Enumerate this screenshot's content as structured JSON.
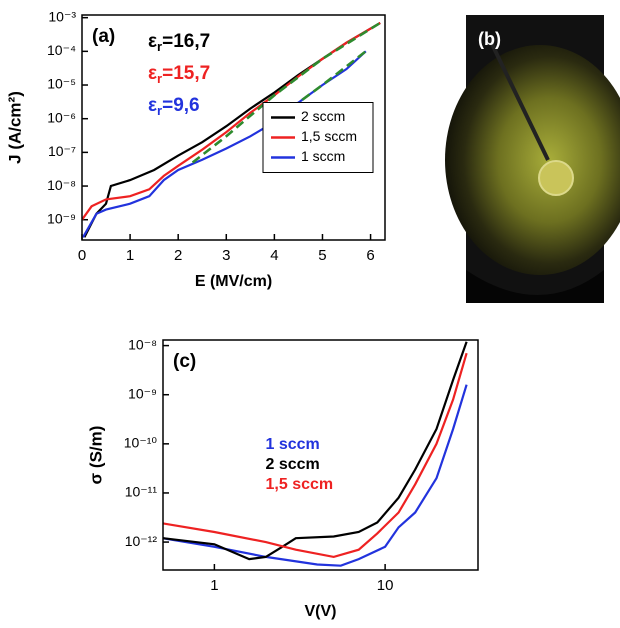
{
  "chart_data": [
    {
      "type": "line",
      "panel_label": "(a)",
      "xlabel": "E (MV/cm)",
      "ylabel": "J (A/cm²)",
      "xlim": [
        0,
        6.3
      ],
      "xticks": [
        0,
        1,
        2,
        3,
        4,
        5,
        6
      ],
      "ylog": true,
      "ylim": [
        2.5e-10,
        0.0012
      ],
      "yticks": [
        {
          "value": 1e-09,
          "label": "10⁻⁹"
        },
        {
          "value": 1e-08,
          "label": "10⁻⁸"
        },
        {
          "value": 1e-07,
          "label": "10⁻⁷"
        },
        {
          "value": 1e-06,
          "label": "10⁻⁶"
        },
        {
          "value": 1e-05,
          "label": "10⁻⁵"
        },
        {
          "value": 0.0001,
          "label": "10⁻⁴"
        },
        {
          "value": 0.001,
          "label": "10⁻³"
        }
      ],
      "legend_loc": "center right",
      "legend_frame": true,
      "annotations": [
        {
          "symbol": "ε",
          "sub": "r",
          "text": "=16,7",
          "color": "#000000"
        },
        {
          "symbol": "ε",
          "sub": "r",
          "text": "=15,7",
          "color": "#ee2222"
        },
        {
          "symbol": "ε",
          "sub": "r",
          "text": "=9,6",
          "color": "#2233dd"
        }
      ],
      "series": [
        {
          "name": "2 sccm",
          "color": "#000000",
          "x": [
            0.05,
            0.3,
            0.5,
            0.6,
            1,
            1.5,
            2,
            2.5,
            3,
            3.5,
            4,
            4.5,
            5,
            5.5,
            6.2
          ],
          "values": [
            3e-10,
            1.5e-09,
            3e-09,
            1e-08,
            1.5e-08,
            3e-08,
            8e-08,
            2e-07,
            6e-07,
            2e-06,
            6e-06,
            2e-05,
            6e-05,
            0.00018,
            0.0007
          ]
        },
        {
          "name": "1,5 sccm",
          "color": "#ee2222",
          "x": [
            0,
            0.2,
            0.5,
            1,
            1.4,
            1.7,
            2,
            2.5,
            3,
            3.5,
            4,
            4.5,
            5,
            5.5,
            6.2
          ],
          "values": [
            1e-09,
            2.5e-09,
            4e-09,
            5e-09,
            8e-09,
            2e-08,
            4e-08,
            1.2e-07,
            4e-07,
            1.5e-06,
            5e-06,
            1.8e-05,
            6e-05,
            0.00018,
            0.0007
          ]
        },
        {
          "name": "1 sccm",
          "color": "#2233dd",
          "x": [
            0.02,
            0.3,
            0.5,
            1,
            1.4,
            1.7,
            2,
            2.5,
            3,
            3.5,
            4,
            4.5,
            5,
            5.5,
            5.9
          ],
          "values": [
            3e-10,
            1.5e-09,
            2e-09,
            3e-09,
            5e-09,
            1.5e-08,
            3e-08,
            6e-08,
            1.3e-07,
            3e-07,
            8e-07,
            3e-06,
            1e-05,
            3e-05,
            0.0001
          ]
        },
        {
          "color": "#2e8b2e",
          "dashed": true,
          "x": [
            2.3,
            3,
            4,
            5,
            6.2
          ],
          "values": [
            5e-08,
            3e-07,
            5e-06,
            6e-05,
            0.0007
          ]
        },
        {
          "color": "#2e8b2e",
          "dashed": true,
          "x": [
            3.9,
            4.5,
            5,
            5.9
          ],
          "values": [
            6e-07,
            3e-06,
            1e-05,
            0.0001
          ]
        }
      ]
    },
    {
      "type": "line",
      "panel_label": "(c)",
      "xlabel": "V(V)",
      "ylabel": "σ (S/m)",
      "xlog": true,
      "xlim": [
        0.5,
        35
      ],
      "xticks": [
        1,
        10
      ],
      "ylog": true,
      "ylim": [
        2.7e-13,
        1.3e-08
      ],
      "yticks": [
        {
          "value": 1e-12,
          "label": "10⁻¹²"
        },
        {
          "value": 1e-11,
          "label": "10⁻¹¹"
        },
        {
          "value": 1e-10,
          "label": "10⁻¹⁰"
        },
        {
          "value": 1e-09,
          "label": "10⁻⁹"
        },
        {
          "value": 1e-08,
          "label": "10⁻⁸"
        }
      ],
      "legend_loc": "center",
      "legend_frame": false,
      "series": [
        {
          "name": "1 sccm",
          "color": "#2233dd",
          "x": [
            0.5,
            1,
            2,
            4,
            5.5,
            7,
            10,
            12,
            15,
            20,
            25,
            30
          ],
          "values": [
            1.2e-12,
            8e-13,
            5e-13,
            3.5e-13,
            3.3e-13,
            4.5e-13,
            8e-13,
            2e-12,
            4e-12,
            2e-11,
            2e-10,
            1.6e-09
          ]
        },
        {
          "name": "2 sccm",
          "color": "#000000",
          "x": [
            0.5,
            1,
            1.6,
            2,
            2.5,
            3,
            5,
            7,
            9,
            12,
            15,
            20,
            25,
            30
          ],
          "values": [
            1.2e-12,
            9e-13,
            4.5e-13,
            5e-13,
            8e-13,
            1.2e-12,
            1.3e-12,
            1.6e-12,
            2.5e-12,
            8e-12,
            3e-11,
            2e-10,
            2e-09,
            1.2e-08
          ]
        },
        {
          "name": "1,5 sccm",
          "color": "#ee2222",
          "x": [
            0.5,
            1,
            2,
            3,
            5,
            7,
            9,
            12,
            15,
            20,
            25,
            30
          ],
          "values": [
            2.4e-12,
            1.6e-12,
            1e-12,
            7e-13,
            5e-13,
            7e-13,
            1.5e-12,
            4e-12,
            1.5e-11,
            1e-10,
            8e-10,
            7e-09
          ]
        }
      ]
    }
  ],
  "photo": {
    "label": "(b)"
  }
}
